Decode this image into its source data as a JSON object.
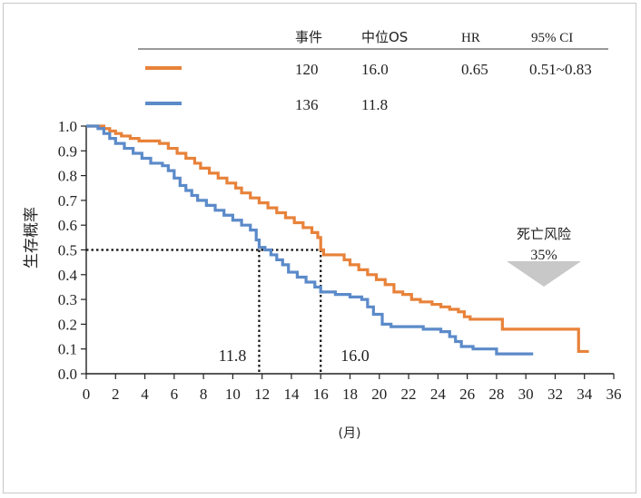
{
  "chart_data": {
    "type": "line",
    "ylabel": "生存概率",
    "xlabel": "(月)",
    "xlim": [
      0,
      36
    ],
    "ylim": [
      0,
      1.0
    ],
    "x_ticks": [
      "0",
      "2",
      "4",
      "6",
      "8",
      "10",
      "12",
      "14",
      "16",
      "18",
      "20",
      "22",
      "24",
      "26",
      "28",
      "30",
      "32",
      "34",
      "36"
    ],
    "y_ticks": [
      "0.0",
      "0.1",
      "0.2",
      "0.3",
      "0.4",
      "0.5",
      "0.6",
      "0.7",
      "0.8",
      "0.9",
      "1.0"
    ],
    "table": {
      "headers": [
        "事件",
        "中位OS",
        "HR",
        "95% CI"
      ],
      "rows": [
        {
          "color": "#e8823a",
          "events": "120",
          "median": "16.0",
          "hr": "0.65",
          "ci": "0.51~0.83"
        },
        {
          "color": "#5b8ac9",
          "events": "136",
          "median": "11.8",
          "hr": "",
          "ci": ""
        }
      ]
    },
    "median_line_y": 0.5,
    "medians": [
      {
        "x": 11.8,
        "label": "11.8"
      },
      {
        "x": 16.0,
        "label": "16.0"
      }
    ],
    "annotation": {
      "title": "死亡风险",
      "value": "35%",
      "arrow_color": "#c8c8c8"
    },
    "series": [
      {
        "color": "#e8823a",
        "points": [
          [
            0,
            1.0
          ],
          [
            0.8,
            1.0
          ],
          [
            1.2,
            0.99
          ],
          [
            1.6,
            0.98
          ],
          [
            2.0,
            0.97
          ],
          [
            2.4,
            0.96
          ],
          [
            3.0,
            0.95
          ],
          [
            3.6,
            0.94
          ],
          [
            4.4,
            0.94
          ],
          [
            5.0,
            0.93
          ],
          [
            5.6,
            0.91
          ],
          [
            6.2,
            0.89
          ],
          [
            6.8,
            0.87
          ],
          [
            7.4,
            0.85
          ],
          [
            7.8,
            0.83
          ],
          [
            8.4,
            0.81
          ],
          [
            9.0,
            0.79
          ],
          [
            9.6,
            0.77
          ],
          [
            10.2,
            0.75
          ],
          [
            10.6,
            0.73
          ],
          [
            11.2,
            0.71
          ],
          [
            11.8,
            0.69
          ],
          [
            12.4,
            0.67
          ],
          [
            13.0,
            0.65
          ],
          [
            13.6,
            0.63
          ],
          [
            14.2,
            0.61
          ],
          [
            14.8,
            0.59
          ],
          [
            15.4,
            0.57
          ],
          [
            15.8,
            0.55
          ],
          [
            16.0,
            0.5
          ],
          [
            16.2,
            0.48
          ],
          [
            17.0,
            0.48
          ],
          [
            17.6,
            0.46
          ],
          [
            18.0,
            0.44
          ],
          [
            18.6,
            0.42
          ],
          [
            19.2,
            0.4
          ],
          [
            19.8,
            0.38
          ],
          [
            20.4,
            0.36
          ],
          [
            21.0,
            0.33
          ],
          [
            21.6,
            0.32
          ],
          [
            22.2,
            0.3
          ],
          [
            22.8,
            0.29
          ],
          [
            23.6,
            0.28
          ],
          [
            24.2,
            0.27
          ],
          [
            24.8,
            0.26
          ],
          [
            25.4,
            0.25
          ],
          [
            25.8,
            0.23
          ],
          [
            26.2,
            0.22
          ],
          [
            28.0,
            0.22
          ],
          [
            28.4,
            0.18
          ],
          [
            31.0,
            0.18
          ],
          [
            33.2,
            0.18
          ],
          [
            33.6,
            0.18
          ],
          [
            33.6,
            0.09
          ],
          [
            34.3,
            0.09
          ]
        ]
      },
      {
        "color": "#5b8ac9",
        "points": [
          [
            0,
            1.0
          ],
          [
            0.8,
            0.99
          ],
          [
            1.2,
            0.97
          ],
          [
            1.6,
            0.95
          ],
          [
            2.0,
            0.93
          ],
          [
            2.6,
            0.91
          ],
          [
            3.2,
            0.89
          ],
          [
            3.8,
            0.87
          ],
          [
            4.4,
            0.85
          ],
          [
            5.2,
            0.84
          ],
          [
            5.6,
            0.82
          ],
          [
            6.0,
            0.79
          ],
          [
            6.4,
            0.76
          ],
          [
            6.8,
            0.74
          ],
          [
            7.2,
            0.72
          ],
          [
            7.6,
            0.7
          ],
          [
            8.2,
            0.68
          ],
          [
            8.8,
            0.66
          ],
          [
            9.4,
            0.64
          ],
          [
            10.0,
            0.62
          ],
          [
            10.6,
            0.6
          ],
          [
            11.2,
            0.58
          ],
          [
            11.6,
            0.54
          ],
          [
            11.8,
            0.51
          ],
          [
            12.2,
            0.5
          ],
          [
            12.6,
            0.48
          ],
          [
            13.0,
            0.46
          ],
          [
            13.4,
            0.44
          ],
          [
            13.8,
            0.41
          ],
          [
            14.4,
            0.39
          ],
          [
            15.0,
            0.37
          ],
          [
            15.6,
            0.35
          ],
          [
            16.0,
            0.33
          ],
          [
            17.0,
            0.32
          ],
          [
            18.0,
            0.31
          ],
          [
            18.8,
            0.3
          ],
          [
            19.2,
            0.27
          ],
          [
            19.6,
            0.24
          ],
          [
            20.2,
            0.2
          ],
          [
            20.8,
            0.19
          ],
          [
            23.0,
            0.18
          ],
          [
            24.2,
            0.17
          ],
          [
            24.8,
            0.15
          ],
          [
            25.2,
            0.13
          ],
          [
            25.6,
            0.11
          ],
          [
            26.4,
            0.1
          ],
          [
            27.4,
            0.1
          ],
          [
            28.0,
            0.08
          ],
          [
            29.0,
            0.08
          ],
          [
            30.5,
            0.08
          ]
        ]
      }
    ]
  }
}
